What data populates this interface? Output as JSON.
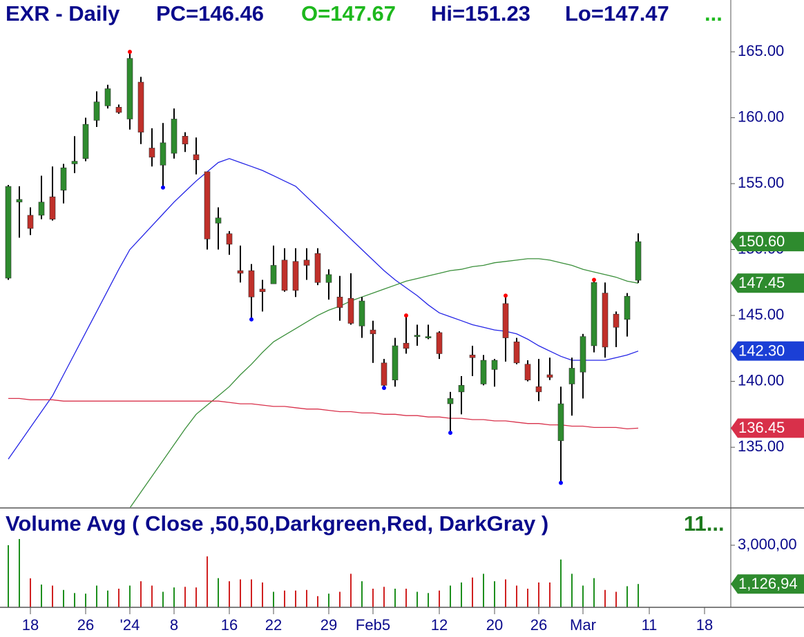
{
  "chart_data": [
    {
      "type": "candlestick",
      "title": "EXR - Daily",
      "quote": [
        {
          "text": "PC=146.46",
          "color": "#0a0a8c"
        },
        {
          "text": "O=147.67",
          "color": "#1db81d"
        },
        {
          "text": "Hi=151.23",
          "color": "#0a0a8c"
        },
        {
          "text": "Lo=147.47",
          "color": "#0a0a8c"
        },
        {
          "text": "...",
          "color": "#1db81d"
        }
      ],
      "x": [
        0,
        1,
        2,
        3,
        4,
        5,
        6,
        7,
        8,
        9,
        10,
        11,
        12,
        13,
        14,
        15,
        16,
        17,
        18,
        19,
        20,
        21,
        22,
        23,
        24,
        25,
        26,
        27,
        28,
        29,
        30,
        31,
        32,
        33,
        34,
        35,
        36,
        37,
        38,
        39,
        40,
        41,
        42,
        43,
        44,
        45,
        46,
        47,
        48,
        49,
        50,
        51,
        52,
        53,
        54,
        55,
        56,
        57
      ],
      "open": [
        147.83,
        153.6,
        152.6,
        152.6,
        154.0,
        154.5,
        156.5,
        156.9,
        159.8,
        160.9,
        160.8,
        159.9,
        162.7,
        157.7,
        156.4,
        157.3,
        158.6,
        157.2,
        155.9,
        152.0,
        151.2,
        148.4,
        148.4,
        147.0,
        147.4,
        149.2,
        149.1,
        149.2,
        149.7,
        147.5,
        146.4,
        146.3,
        144.2,
        143.9,
        141.4,
        140.1,
        142.9,
        143.4,
        143.3,
        143.7,
        138.3,
        139.2,
        142.0,
        139.8,
        140.9,
        145.9,
        143.0,
        141.3,
        139.6,
        140.5,
        135.5,
        139.8,
        140.7,
        142.7,
        146.7,
        145.1,
        144.7,
        147.67
      ],
      "high": [
        154.9,
        154.8,
        153.2,
        155.6,
        156.3,
        156.5,
        158.6,
        160.0,
        162.0,
        162.5,
        161.0,
        165.0,
        163.1,
        159.2,
        159.6,
        160.7,
        158.9,
        158.5,
        155.9,
        153.2,
        151.4,
        150.3,
        148.9,
        147.7,
        150.3,
        150.1,
        150.1,
        150.1,
        150.1,
        148.5,
        148.0,
        148.2,
        146.4,
        144.6,
        141.7,
        143.3,
        145.0,
        144.3,
        144.3,
        143.8,
        139.2,
        140.4,
        142.7,
        142.0,
        141.7,
        146.5,
        143.3,
        141.6,
        141.7,
        141.8,
        139.6,
        141.8,
        143.6,
        147.7,
        147.5,
        145.3,
        146.7,
        151.23
      ],
      "low": [
        147.7,
        150.9,
        151.1,
        152.3,
        152.2,
        153.5,
        155.8,
        156.7,
        159.3,
        160.7,
        160.3,
        159.1,
        158.0,
        156.3,
        154.7,
        156.9,
        157.4,
        155.7,
        150.0,
        150.0,
        149.6,
        147.5,
        144.7,
        145.3,
        147.4,
        146.8,
        146.4,
        147.7,
        147.3,
        146.2,
        144.6,
        144.3,
        143.3,
        141.4,
        139.5,
        139.6,
        142.1,
        142.7,
        143.2,
        141.7,
        136.1,
        137.5,
        140.4,
        139.7,
        139.6,
        141.5,
        141.3,
        140.0,
        138.5,
        140.1,
        132.3,
        137.4,
        138.7,
        142.2,
        141.8,
        142.6,
        143.4,
        147.47
      ],
      "close": [
        154.79,
        153.8,
        151.6,
        153.6,
        152.3,
        156.2,
        156.7,
        159.5,
        161.2,
        162.2,
        160.4,
        164.5,
        158.9,
        157.0,
        158.1,
        159.9,
        158.0,
        156.8,
        150.8,
        152.4,
        150.4,
        148.2,
        146.4,
        146.8,
        148.8,
        146.9,
        146.9,
        148.8,
        147.5,
        148.1,
        145.6,
        144.4,
        146.1,
        143.6,
        139.7,
        142.7,
        142.5,
        143.5,
        143.4,
        142.1,
        138.7,
        139.7,
        141.8,
        141.6,
        141.6,
        143.3,
        141.4,
        140.1,
        139.2,
        140.3,
        138.3,
        141.0,
        143.4,
        147.5,
        142.6,
        144.1,
        146.46,
        150.6
      ],
      "close_label": "150.60",
      "close_label_color": "#2e8b2e",
      "up_color": "#2e8b2e",
      "down_color": "#c0302a",
      "swing_highs": [
        11,
        36,
        45,
        53
      ],
      "swing_lows": [
        14,
        22,
        34,
        40,
        50
      ],
      "moving_averages": [
        {
          "color": "#2323e6",
          "label_color": "#1b3fd6",
          "last_label": "142.30",
          "values": [
            134.1,
            135.3,
            136.5,
            137.7,
            138.9,
            140.5,
            142.1,
            143.7,
            145.3,
            146.9,
            148.5,
            150.0,
            150.9,
            151.8,
            152.7,
            153.6,
            154.4,
            155.2,
            155.9,
            156.6,
            156.9,
            156.6,
            156.3,
            156.0,
            155.6,
            155.2,
            154.8,
            154.0,
            153.2,
            152.4,
            151.6,
            150.8,
            150.0,
            149.2,
            148.4,
            147.7,
            147.1,
            146.5,
            145.8,
            145.2,
            144.9,
            144.6,
            144.3,
            144.1,
            143.9,
            143.8,
            143.6,
            143.2,
            142.7,
            142.3,
            141.9,
            141.6,
            141.6,
            141.6,
            141.6,
            141.8,
            142.0,
            142.3
          ]
        },
        {
          "color": "#3a8f3a",
          "label_color": "#2e8b2e",
          "last_label": "147.45",
          "values": [
            null,
            null,
            null,
            null,
            null,
            null,
            null,
            null,
            null,
            null,
            null,
            130.4,
            131.6,
            132.8,
            134.0,
            135.2,
            136.4,
            137.5,
            138.2,
            138.9,
            139.6,
            140.5,
            141.3,
            142.2,
            143.0,
            143.5,
            144.0,
            144.5,
            145.0,
            145.4,
            145.7,
            146.1,
            146.4,
            146.7,
            147.0,
            147.3,
            147.6,
            147.8,
            148.0,
            148.2,
            148.4,
            148.5,
            148.7,
            148.8,
            149.0,
            149.1,
            149.2,
            149.3,
            149.3,
            149.2,
            149.0,
            148.8,
            148.5,
            148.3,
            148.1,
            147.9,
            147.6,
            147.45
          ]
        },
        {
          "color": "#d8304a",
          "label_color": "#d8304a",
          "last_label": "136.45",
          "values": [
            138.7,
            138.7,
            138.6,
            138.6,
            138.6,
            138.5,
            138.5,
            138.5,
            138.5,
            138.5,
            138.5,
            138.5,
            138.5,
            138.5,
            138.5,
            138.5,
            138.5,
            138.5,
            138.5,
            138.5,
            138.4,
            138.3,
            138.3,
            138.2,
            138.1,
            138.1,
            138.0,
            137.9,
            137.9,
            137.8,
            137.7,
            137.7,
            137.6,
            137.6,
            137.5,
            137.5,
            137.4,
            137.4,
            137.3,
            137.3,
            137.2,
            137.2,
            137.1,
            137.1,
            137.0,
            137.0,
            136.9,
            136.8,
            136.8,
            136.7,
            136.7,
            136.6,
            136.6,
            136.5,
            136.5,
            136.5,
            136.4,
            136.45
          ]
        }
      ],
      "xlim": [
        -0.75,
        65.375
      ],
      "ylim": [
        130.45,
        168.93
      ],
      "yticks": [
        {
          "value": 135,
          "label": "135.00"
        },
        {
          "value": 140,
          "label": "140.00"
        },
        {
          "value": 145,
          "label": "145.00"
        },
        {
          "value": 150,
          "label": "150.00"
        },
        {
          "value": 155,
          "label": "155.00"
        },
        {
          "value": 160,
          "label": "160.00"
        },
        {
          "value": 165,
          "label": "165.00"
        }
      ]
    },
    {
      "type": "bar",
      "title": "Volume Avg ( Close ,50,50,Darkgreen,Red, DarkGray )",
      "title_note": "11...",
      "title_note_color": "#1d7a1d",
      "x": [
        0,
        1,
        2,
        3,
        4,
        5,
        6,
        7,
        8,
        9,
        10,
        11,
        12,
        13,
        14,
        15,
        16,
        17,
        18,
        19,
        20,
        21,
        22,
        23,
        24,
        25,
        26,
        27,
        28,
        29,
        30,
        31,
        32,
        33,
        34,
        35,
        36,
        37,
        38,
        39,
        40,
        41,
        42,
        43,
        44,
        45,
        46,
        47,
        48,
        49,
        50,
        51,
        52,
        53,
        54,
        55,
        56,
        57
      ],
      "values": [
        3000000,
        3300000,
        1400000,
        1100000,
        1050000,
        840000,
        690000,
        660000,
        1050000,
        810000,
        900000,
        1050000,
        1260000,
        1050000,
        750000,
        960000,
        990000,
        960000,
        2460000,
        1410000,
        1260000,
        1350000,
        1350000,
        1200000,
        750000,
        810000,
        810000,
        840000,
        540000,
        660000,
        750000,
        1620000,
        1260000,
        900000,
        990000,
        900000,
        900000,
        750000,
        690000,
        810000,
        1050000,
        1200000,
        1440000,
        1620000,
        1260000,
        1350000,
        1050000,
        900000,
        1200000,
        1200000,
        2310000,
        1620000,
        1050000,
        1410000,
        840000,
        750000,
        1020000,
        1126940
      ],
      "last_label": "1,126,94",
      "last_label_color": "#2e8b2e",
      "xlim": [
        -0.75,
        65.375
      ],
      "ylim": [
        0,
        4766667
      ],
      "yticks": [
        {
          "value": 3000000,
          "label": "3,000,00"
        }
      ],
      "xticks": [
        {
          "value": 2,
          "label": "18"
        },
        {
          "value": 7,
          "label": "26"
        },
        {
          "value": 11,
          "label": "'24"
        },
        {
          "value": 15,
          "label": "8"
        },
        {
          "value": 20,
          "label": "16"
        },
        {
          "value": 24,
          "label": "22"
        },
        {
          "value": 29,
          "label": "29"
        },
        {
          "value": 33,
          "label": "Feb5"
        },
        {
          "value": 39,
          "label": "12"
        },
        {
          "value": 44,
          "label": "20"
        },
        {
          "value": 48,
          "label": "26"
        },
        {
          "value": 52,
          "label": "Mar"
        },
        {
          "value": 58,
          "label": "11"
        },
        {
          "value": 63,
          "label": "18"
        }
      ]
    }
  ]
}
